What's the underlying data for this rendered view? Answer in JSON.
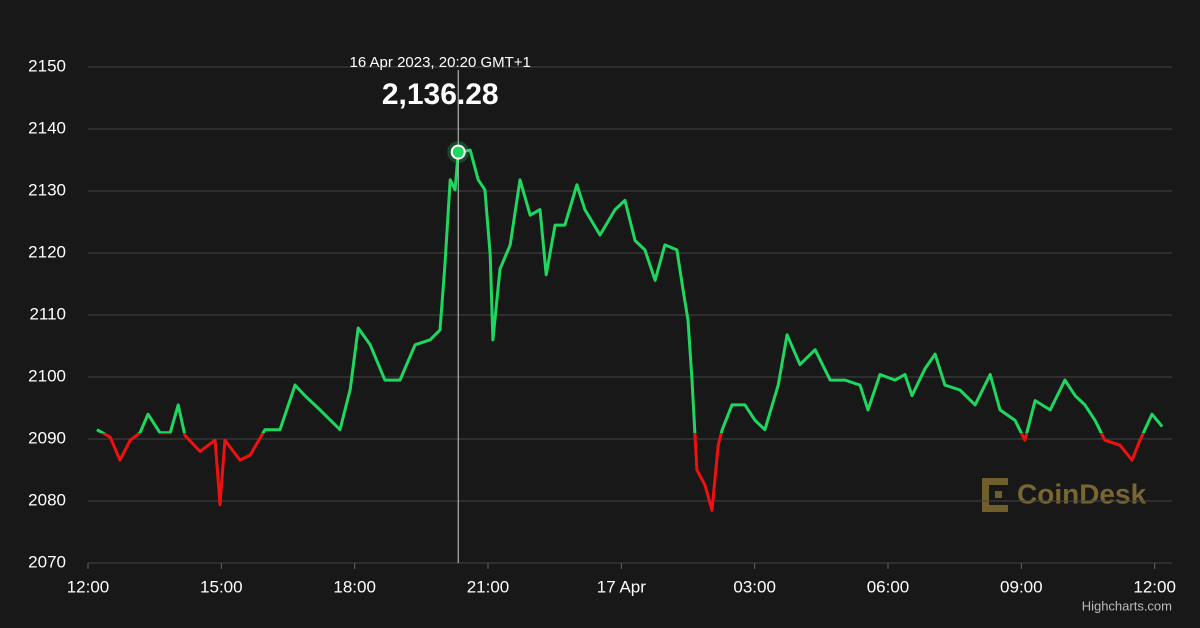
{
  "chart_data": {
    "type": "line",
    "x": [
      0.2,
      0.5,
      0.72,
      0.95,
      1.17,
      1.35,
      1.62,
      1.85,
      2.03,
      2.18,
      2.52,
      2.86,
      2.97,
      3.08,
      3.42,
      3.65,
      3.98,
      4.32,
      4.66,
      4.88,
      5.22,
      5.67,
      5.9,
      6.08,
      6.35,
      6.68,
      7.02,
      7.36,
      7.7,
      7.92,
      8.03,
      8.15,
      8.26,
      8.33,
      8.6,
      8.78,
      8.93,
      9.05,
      9.11,
      9.27,
      9.5,
      9.72,
      9.95,
      10.17,
      10.31,
      10.51,
      10.73,
      11.0,
      11.18,
      11.52,
      11.86,
      12.08,
      12.31,
      12.53,
      12.76,
      12.98,
      13.25,
      13.39,
      13.5,
      13.59,
      13.7,
      13.88,
      14.04,
      14.18,
      14.27,
      14.49,
      14.78,
      15.01,
      15.23,
      15.53,
      15.73,
      16.02,
      16.36,
      16.7,
      17.03,
      17.37,
      17.55,
      17.82,
      18.16,
      18.38,
      18.54,
      18.83,
      19.06,
      19.28,
      19.62,
      19.96,
      20.3,
      20.52,
      20.86,
      21.08,
      21.31,
      21.65,
      21.98,
      22.21,
      22.43,
      22.66,
      22.88,
      23.22,
      23.49,
      23.67,
      23.94,
      24.17
    ],
    "series": [
      {
        "values": [
          2091.5,
          2090.3,
          2086.6,
          2089.8,
          2091,
          2094,
          2091,
          2091,
          2095.5,
          2090.6,
          2088,
          2089.8,
          2079.4,
          2089.8,
          2086.6,
          2087.4,
          2091.5,
          2091.5,
          2098.7,
          2097,
          2094.7,
          2091.5,
          2098,
          2107.9,
          2105.2,
          2099.5,
          2099.5,
          2105.2,
          2106,
          2107.6,
          2118,
          2131.8,
          2130.2,
          2136.28,
          2136.6,
          2131.8,
          2130.2,
          2119.7,
          2106,
          2117.4,
          2121.3,
          2131.8,
          2126.1,
          2127,
          2116.5,
          2124.5,
          2124.5,
          2131,
          2127,
          2122.9,
          2127,
          2128.5,
          2122,
          2120.5,
          2115.6,
          2121.3,
          2120.5,
          2114,
          2109.2,
          2099.5,
          2085,
          2082.6,
          2078.5,
          2089,
          2091.5,
          2095.5,
          2095.5,
          2093,
          2091.5,
          2098.7,
          2106.8,
          2102,
          2104.4,
          2099.5,
          2099.5,
          2098.7,
          2094.7,
          2100.4,
          2099.5,
          2100.4,
          2097,
          2101.3,
          2103.7,
          2098.7,
          2097.9,
          2095.5,
          2100.4,
          2094.7,
          2093,
          2089.8,
          2096.2,
          2094.7,
          2099.5,
          2097,
          2095.5,
          2093,
          2089.8,
          2089,
          2086.6,
          2089.8,
          2094,
          2092
        ],
        "color": "#1ed760",
        "negative_color": "#ee1111",
        "threshold": 2091
      }
    ],
    "xlim": [
      0,
      24.39
    ],
    "xticks": [
      {
        "value": 0,
        "label": "12:00"
      },
      {
        "value": 3,
        "label": "15:00"
      },
      {
        "value": 6,
        "label": "18:00"
      },
      {
        "value": 9,
        "label": "21:00"
      },
      {
        "value": 12,
        "label": "17 Apr"
      },
      {
        "value": 15,
        "label": "03:00"
      },
      {
        "value": 18,
        "label": "06:00"
      },
      {
        "value": 21,
        "label": "09:00"
      },
      {
        "value": 24,
        "label": "12:00"
      }
    ],
    "ylim": [
      2070,
      2150
    ],
    "yticks": [
      2070,
      2080,
      2090,
      2100,
      2110,
      2120,
      2130,
      2140,
      2150
    ],
    "grid": true,
    "tooltip": {
      "x": 8.33,
      "value": 2136.28,
      "value_label": "2,136.28",
      "label": "16 Apr 2023, 20:20 GMT+1"
    },
    "watermark": "CoinDesk",
    "credits": "Highcharts.com"
  }
}
